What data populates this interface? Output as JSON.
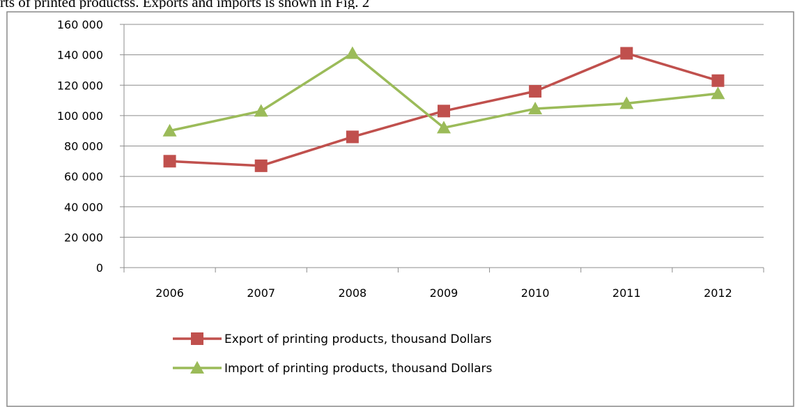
{
  "caption": "rts of printed  productss. Exports and imports is shown in Fig. 2",
  "chart_data": {
    "type": "line",
    "title": "",
    "xlabel": "",
    "ylabel": "",
    "categories": [
      "2006",
      "2007",
      "2008",
      "2009",
      "2010",
      "2011",
      "2012"
    ],
    "ylim": [
      0,
      160000
    ],
    "y_ticks": [
      0,
      20000,
      40000,
      60000,
      80000,
      100000,
      120000,
      140000,
      160000
    ],
    "y_tick_labels": [
      "0",
      "20 000",
      "40 000",
      "60 000",
      "80 000",
      "100 000",
      "120 000",
      "140 000",
      "160 000"
    ],
    "grid": true,
    "legend_position": "bottom",
    "series": [
      {
        "name": "Export of printing products, thousand Dollars",
        "color": "#c0504d",
        "marker": "square",
        "values": [
          70000,
          67000,
          86000,
          103000,
          116000,
          141000,
          123000
        ]
      },
      {
        "name": "Import of printing products, thousand Dollars",
        "color": "#9bbb59",
        "marker": "triangle",
        "values": [
          90000,
          103000,
          141000,
          92000,
          104500,
          108000,
          114500
        ]
      }
    ]
  }
}
